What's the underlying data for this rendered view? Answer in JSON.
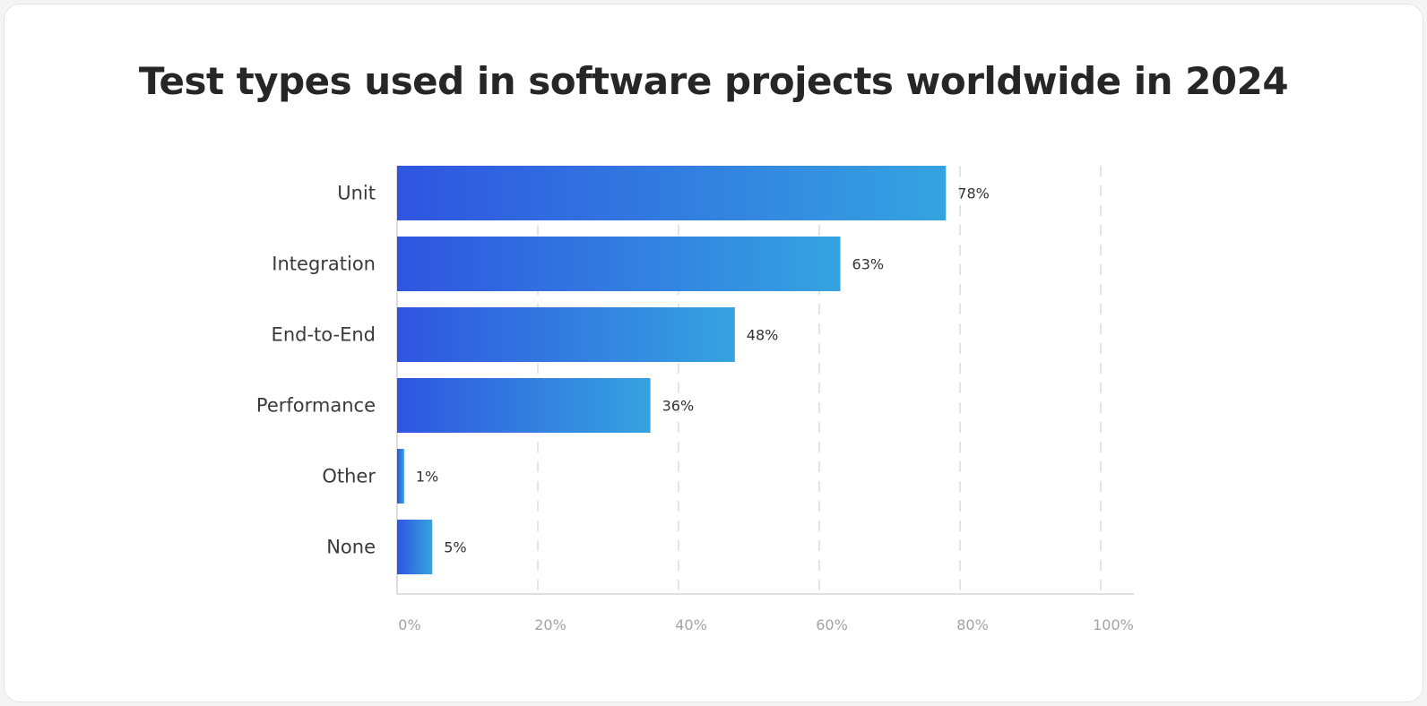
{
  "chart_data": {
    "type": "bar",
    "orientation": "horizontal",
    "title": "Test types used in software projects worldwide in 2024",
    "categories": [
      "Unit",
      "Integration",
      "End-to-End",
      "Performance",
      "Other",
      "None"
    ],
    "values": [
      78,
      63,
      48,
      36,
      1,
      5
    ],
    "data_labels": [
      "78%",
      "63%",
      "48%",
      "36%",
      "1%",
      "5%"
    ],
    "xlim": [
      0,
      100
    ],
    "x_ticks": [
      "0%",
      "20%",
      "40%",
      "60%",
      "80%",
      "100%"
    ],
    "xlabel": "",
    "ylabel": "",
    "grid": "vertical dashed",
    "colors": {
      "bar_start": "#2f55e0",
      "bar_end": "#35a3e0",
      "grid": "#dcdcdc",
      "axis": "#d4d4d4"
    }
  }
}
